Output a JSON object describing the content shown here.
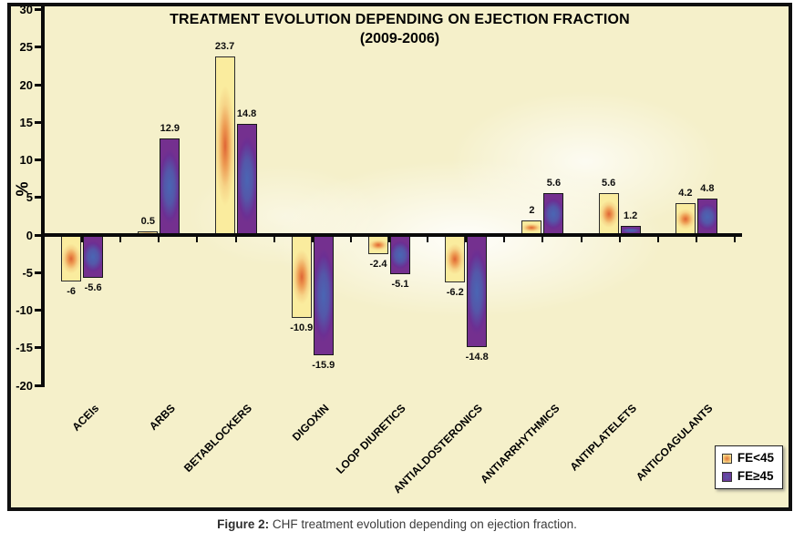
{
  "chart_data": {
    "type": "bar",
    "title": "TREATMENT EVOLUTION DEPENDING ON EJECTION FRACTION",
    "subtitle": "(2009-2006)",
    "ylabel": "%",
    "xlabel": "",
    "ylim": [
      -20,
      30
    ],
    "ytick_step": 5,
    "yticks": [
      30,
      25,
      20,
      15,
      10,
      5,
      0,
      -5,
      -10,
      -15,
      -20
    ],
    "grid": false,
    "legend_position": "bottom-right",
    "categories": [
      "ACEIs",
      "ARBS",
      "BETABLOCKERS",
      "DIGOXIN",
      "LOOP DIURETICS",
      "ANTIALDOSTERONICS",
      "ANTIARRHYTHMICS",
      "ANTIPLATELETS",
      "ANTICOAGULANTS"
    ],
    "series": [
      {
        "name": "FE<45",
        "values": [
          -6,
          0.5,
          23.7,
          -10.9,
          -2.4,
          -6.2,
          2,
          5.6,
          4.2
        ],
        "labels": [
          "-6",
          "0.5",
          "23.7",
          "-10.9",
          "-2.4",
          "-6.2",
          "2",
          "5.6",
          "4.2"
        ],
        "color_edge": "#FAEC9E",
        "color_center": "#DF6534"
      },
      {
        "name": "FE≥45",
        "values": [
          -5.6,
          12.9,
          14.8,
          -15.9,
          -5.1,
          -14.8,
          5.6,
          1.2,
          4.8
        ],
        "labels": [
          "-5.6",
          "12.9",
          "14.8",
          "-15.9",
          "-5.1",
          "-14.8",
          "5.6",
          "1.2",
          "4.8"
        ],
        "color_edge": "#74308F",
        "color_center": "#4A66B4"
      }
    ]
  },
  "caption": {
    "label": "Figure 2:",
    "text": " CHF treatment evolution depending on ejection fraction."
  },
  "colors": {
    "plot_background": "#F5F0CA",
    "frame_border": "#101010",
    "axis": "#0A0A0A",
    "text": "#000000",
    "caption_text": "#3B3B3B",
    "legend_background": "#FFFFFF"
  }
}
